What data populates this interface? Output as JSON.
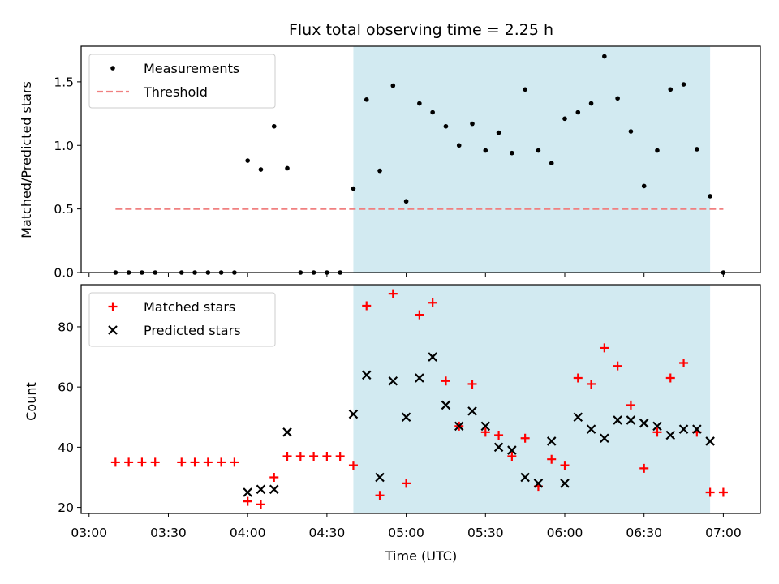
{
  "chart_data": {
    "title": "Flux total observing time = 2.25 h",
    "shared_x": {
      "label": "Time (UTC)",
      "range": [
        "02:57",
        "07:14"
      ],
      "ticks": [
        "03:00",
        "03:30",
        "04:00",
        "04:30",
        "05:00",
        "05:30",
        "06:00",
        "06:30",
        "07:00"
      ]
    },
    "highlight_band": {
      "start": "04:40",
      "end": "06:55",
      "color": "#add8e6"
    },
    "panels": [
      {
        "type": "scatter",
        "ylabel": "Matched/Predicted stars",
        "ylim": [
          0,
          1.78
        ],
        "yticks": [
          "0.0",
          "0.5",
          "1.0",
          "1.5"
        ],
        "legend": "top-left",
        "series": [
          {
            "name": "Measurements",
            "marker": "dot",
            "color": "#000000",
            "x": [
              "03:10",
              "03:15",
              "03:20",
              "03:25",
              "03:35",
              "03:40",
              "03:45",
              "03:50",
              "03:55",
              "04:00",
              "04:05",
              "04:10",
              "04:15",
              "04:20",
              "04:25",
              "04:30",
              "04:35",
              "04:40",
              "04:45",
              "04:50",
              "04:55",
              "05:00",
              "05:05",
              "05:10",
              "05:15",
              "05:20",
              "05:25",
              "05:30",
              "05:35",
              "05:40",
              "05:45",
              "05:50",
              "05:55",
              "06:00",
              "06:05",
              "06:10",
              "06:15",
              "06:20",
              "06:25",
              "06:30",
              "06:35",
              "06:40",
              "06:45",
              "06:50",
              "06:55",
              "07:00"
            ],
            "y": [
              0,
              0,
              0,
              0,
              0,
              0,
              0,
              0,
              0,
              0.88,
              0.81,
              1.15,
              0.82,
              0,
              0,
              0,
              0,
              0.66,
              1.36,
              0.8,
              1.47,
              0.56,
              1.33,
              1.26,
              1.15,
              1.0,
              1.17,
              0.96,
              1.1,
              0.94,
              1.44,
              0.96,
              0.86,
              1.21,
              1.26,
              1.33,
              1.7,
              1.37,
              1.11,
              0.68,
              0.96,
              1.44,
              1.48,
              0.97,
              0.6,
              0
            ]
          },
          {
            "name": "Threshold",
            "marker": "dashed-line",
            "color": "#f08080",
            "x": [
              "03:10",
              "07:00"
            ],
            "y": [
              0.5,
              0.5
            ]
          }
        ]
      },
      {
        "type": "scatter",
        "ylabel": "Count",
        "ylim": [
          18,
          94
        ],
        "yticks": [
          "20",
          "40",
          "60",
          "80"
        ],
        "legend": "top-left",
        "series": [
          {
            "name": "Matched stars",
            "marker": "plus",
            "color": "#ff0000",
            "x": [
              "03:10",
              "03:15",
              "03:20",
              "03:25",
              "03:35",
              "03:40",
              "03:45",
              "03:50",
              "03:55",
              "04:00",
              "04:05",
              "04:10",
              "04:15",
              "04:20",
              "04:25",
              "04:30",
              "04:35",
              "04:40",
              "04:45",
              "04:50",
              "04:55",
              "05:00",
              "05:05",
              "05:10",
              "05:15",
              "05:20",
              "05:25",
              "05:30",
              "05:35",
              "05:40",
              "05:45",
              "05:50",
              "05:55",
              "06:00",
              "06:05",
              "06:10",
              "06:15",
              "06:20",
              "06:25",
              "06:30",
              "06:35",
              "06:40",
              "06:45",
              "06:50",
              "06:55",
              "07:00"
            ],
            "y": [
              35,
              35,
              35,
              35,
              35,
              35,
              35,
              35,
              35,
              22,
              21,
              30,
              37,
              37,
              37,
              37,
              37,
              34,
              87,
              24,
              91,
              28,
              84,
              88,
              62,
              47,
              61,
              45,
              44,
              37,
              43,
              27,
              36,
              34,
              63,
              61,
              73,
              67,
              54,
              33,
              45,
              63,
              68,
              45,
              25,
              25
            ]
          },
          {
            "name": "Predicted stars",
            "marker": "x",
            "color": "#000000",
            "x": [
              "04:00",
              "04:05",
              "04:10",
              "04:15",
              "04:40",
              "04:45",
              "04:50",
              "04:55",
              "05:00",
              "05:05",
              "05:10",
              "05:15",
              "05:20",
              "05:25",
              "05:30",
              "05:35",
              "05:40",
              "05:45",
              "05:50",
              "05:55",
              "06:00",
              "06:05",
              "06:10",
              "06:15",
              "06:20",
              "06:25",
              "06:30",
              "06:35",
              "06:40",
              "06:45",
              "06:50",
              "06:55"
            ],
            "y": [
              25,
              26,
              26,
              45,
              51,
              64,
              30,
              62,
              50,
              63,
              70,
              54,
              47,
              52,
              47,
              40,
              39,
              30,
              28,
              42,
              28,
              50,
              46,
              43,
              49,
              49,
              48,
              47,
              44,
              46,
              46,
              42
            ]
          }
        ]
      }
    ]
  }
}
